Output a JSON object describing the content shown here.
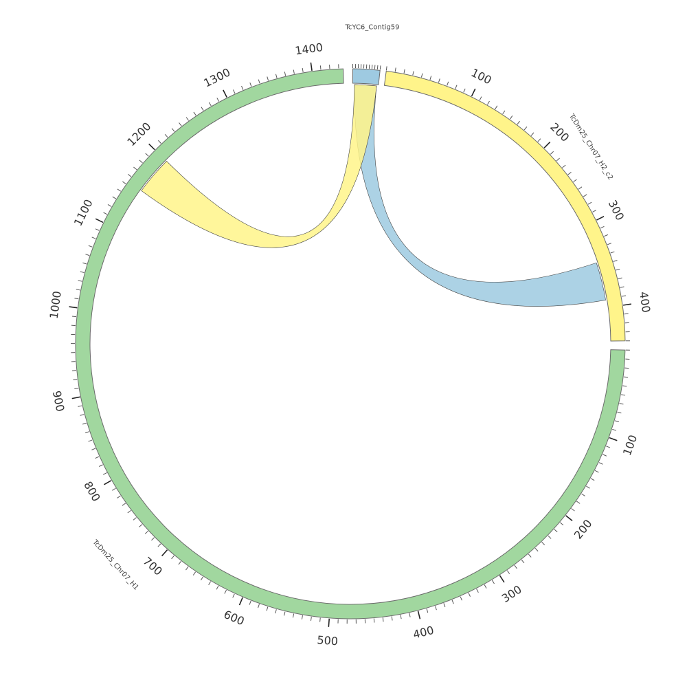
{
  "diagram": {
    "type": "chord",
    "segments": [
      {
        "id": "contig59",
        "label": "TcYC6_Contig59",
        "color": "#9ecae1",
        "start_angle_deg": 0.5,
        "end_angle_deg": 6.2,
        "tick_labels": []
      },
      {
        "id": "h2",
        "label": "TcDm25_Chr07_H2_c2",
        "color": "#fff48a",
        "start_angle_deg": 7.5,
        "end_angle_deg": 89.4,
        "length": 440,
        "tick_labels": [
          "100",
          "200",
          "300",
          "400"
        ],
        "tick_values": [
          100,
          200,
          300,
          400
        ]
      },
      {
        "id": "h1",
        "label": "TcDm25_Chr07_H1",
        "color": "#a1d79f",
        "start_angle_deg": 91.3,
        "end_angle_deg": 358.5,
        "length": 1435,
        "tick_labels": [
          "100",
          "200",
          "300",
          "400",
          "500",
          "600",
          "700",
          "800",
          "900",
          "1000",
          "1100",
          "1200",
          "1300",
          "1400"
        ],
        "tick_values": [
          100,
          200,
          300,
          400,
          500,
          600,
          700,
          800,
          900,
          1000,
          1100,
          1200,
          1300,
          1400
        ]
      }
    ],
    "links": [
      {
        "color": "#9ecae1",
        "a_from": 0.5,
        "a_to": 6.2,
        "b_from": 71.8,
        "b_to": 80.3
      },
      {
        "color": "#fff48a",
        "a_from": 0.5,
        "a_to": 6.2,
        "b_from": 306.2,
        "b_to": 314.8
      }
    ]
  }
}
